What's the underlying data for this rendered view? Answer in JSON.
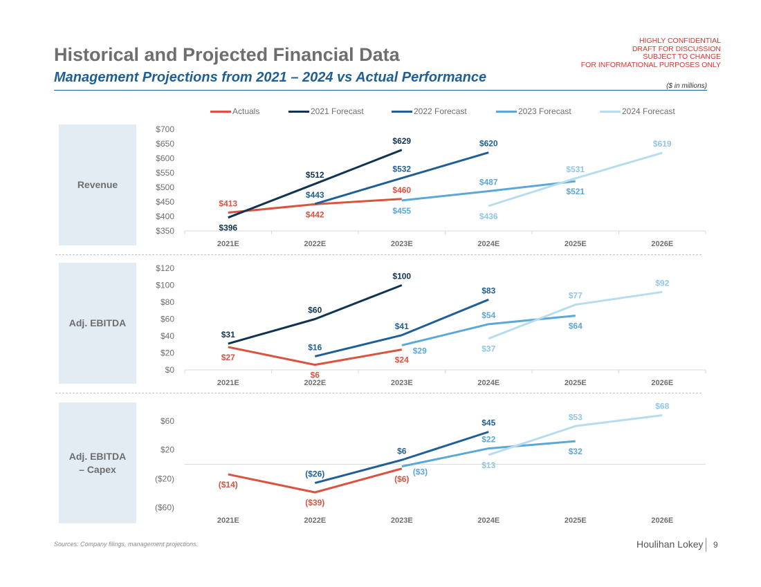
{
  "header": {
    "title": "Historical and Projected Financial Data",
    "subtitle": "Management Projections from 2021 – 2024 vs Actual Performance",
    "confidential_lines": [
      "HIGHLY CONFIDENTIAL",
      "DRAFT FOR DISCUSSION",
      "SUBJECT TO CHANGE",
      "FOR INFORMATIONAL PURPOSES ONLY"
    ],
    "units": "($ in millions)"
  },
  "colors": {
    "accent": "#1f5f96",
    "confidential": "#e0312a",
    "label_bg": "#e4ecf3"
  },
  "footer": {
    "source": "Sources: Company filings, management projections.",
    "brand": "Houlihan Lokey",
    "page_number": "9"
  },
  "chart_data": [
    {
      "type": "line",
      "panel_label": "Revenue",
      "categories": [
        "2021E",
        "2022E",
        "2023E",
        "2024E",
        "2025E",
        "2026E"
      ],
      "yticks": [
        "$350",
        "$400",
        "$450",
        "$500",
        "$550",
        "$600",
        "$650",
        "$700"
      ],
      "ytick_values": [
        350,
        400,
        450,
        500,
        550,
        600,
        650,
        700
      ],
      "ylim": [
        350,
        700
      ],
      "legend": "top",
      "series": [
        {
          "name": "Actuals",
          "color": "#d9533f",
          "values": [
            413,
            442,
            460,
            null,
            null,
            null
          ],
          "label_pos": [
            "above",
            "below",
            "above"
          ]
        },
        {
          "name": "2021 Forecast",
          "color": "#0f3350",
          "values": [
            396,
            512,
            629,
            null,
            null,
            null
          ],
          "label_pos": [
            "below",
            "above",
            "above"
          ]
        },
        {
          "name": "2022 Forecast",
          "color": "#1f5f96",
          "values": [
            null,
            443,
            532,
            620,
            null,
            null
          ],
          "label_pos": [
            null,
            "above",
            "above",
            "above"
          ]
        },
        {
          "name": "2023 Forecast",
          "color": "#5ba8d8",
          "values": [
            null,
            null,
            455,
            487,
            521,
            null
          ],
          "label_pos": [
            null,
            null,
            "below",
            "above",
            "below"
          ]
        },
        {
          "name": "2024 Forecast",
          "color": "#b7dcf0",
          "values": [
            null,
            null,
            null,
            436,
            531,
            619
          ],
          "label_pos": [
            null,
            null,
            null,
            "below",
            "above",
            "above"
          ]
        }
      ]
    },
    {
      "type": "line",
      "panel_label": "Adj. EBITDA",
      "categories": [
        "2021E",
        "2022E",
        "2023E",
        "2024E",
        "2025E",
        "2026E"
      ],
      "yticks": [
        "$0",
        "$20",
        "$40",
        "$60",
        "$80",
        "$100",
        "$120"
      ],
      "ytick_values": [
        0,
        20,
        40,
        60,
        80,
        100,
        120
      ],
      "ylim": [
        0,
        120
      ],
      "series": [
        {
          "name": "Actuals",
          "color": "#d9533f",
          "values": [
            27,
            6,
            24,
            null,
            null,
            null
          ],
          "label_pos": [
            "below",
            "below",
            "below"
          ]
        },
        {
          "name": "2021 Forecast",
          "color": "#0f3350",
          "values": [
            31,
            60,
            100,
            null,
            null,
            null
          ],
          "label_pos": [
            "above",
            "above",
            "above"
          ]
        },
        {
          "name": "2022 Forecast",
          "color": "#1f5f96",
          "values": [
            null,
            16,
            41,
            83,
            null,
            null
          ],
          "label_pos": [
            null,
            "above",
            "above",
            "above"
          ]
        },
        {
          "name": "2023 Forecast",
          "color": "#5ba8d8",
          "values": [
            null,
            null,
            29,
            54,
            64,
            null
          ],
          "label_pos": [
            null,
            null,
            "right",
            "above",
            "below"
          ]
        },
        {
          "name": "2024 Forecast",
          "color": "#b7dcf0",
          "values": [
            null,
            null,
            null,
            37,
            77,
            92
          ],
          "label_pos": [
            null,
            null,
            null,
            "below",
            "above",
            "above"
          ]
        }
      ]
    },
    {
      "type": "line",
      "panel_label": "Adj. EBITDA – Capex",
      "panel_label_lines": [
        "Adj. EBITDA",
        "– Capex"
      ],
      "categories": [
        "2021E",
        "2022E",
        "2023E",
        "2024E",
        "2025E",
        "2026E"
      ],
      "yticks": [
        "($60)",
        "($20)",
        "$20",
        "$60"
      ],
      "ytick_values": [
        -60,
        -20,
        20,
        60
      ],
      "ylim": [
        -60,
        60
      ],
      "series": [
        {
          "name": "Actuals",
          "color": "#d9533f",
          "values": [
            -14,
            -39,
            -6,
            null,
            null,
            null
          ],
          "label_pos": [
            "below",
            "below",
            "below"
          ]
        },
        {
          "name": "2022 Forecast",
          "color": "#1f5f96",
          "values": [
            null,
            -26,
            6,
            45,
            null,
            null
          ],
          "label_pos": [
            null,
            "above",
            "above",
            "above"
          ]
        },
        {
          "name": "2023 Forecast",
          "color": "#5ba8d8",
          "values": [
            null,
            null,
            -3,
            22,
            32,
            null
          ],
          "label_pos": [
            null,
            null,
            "right",
            "above",
            "below"
          ]
        },
        {
          "name": "2024 Forecast",
          "color": "#b7dcf0",
          "values": [
            null,
            null,
            null,
            13,
            53,
            68
          ],
          "label_pos": [
            null,
            null,
            null,
            "below",
            "above",
            "above"
          ]
        }
      ]
    }
  ]
}
